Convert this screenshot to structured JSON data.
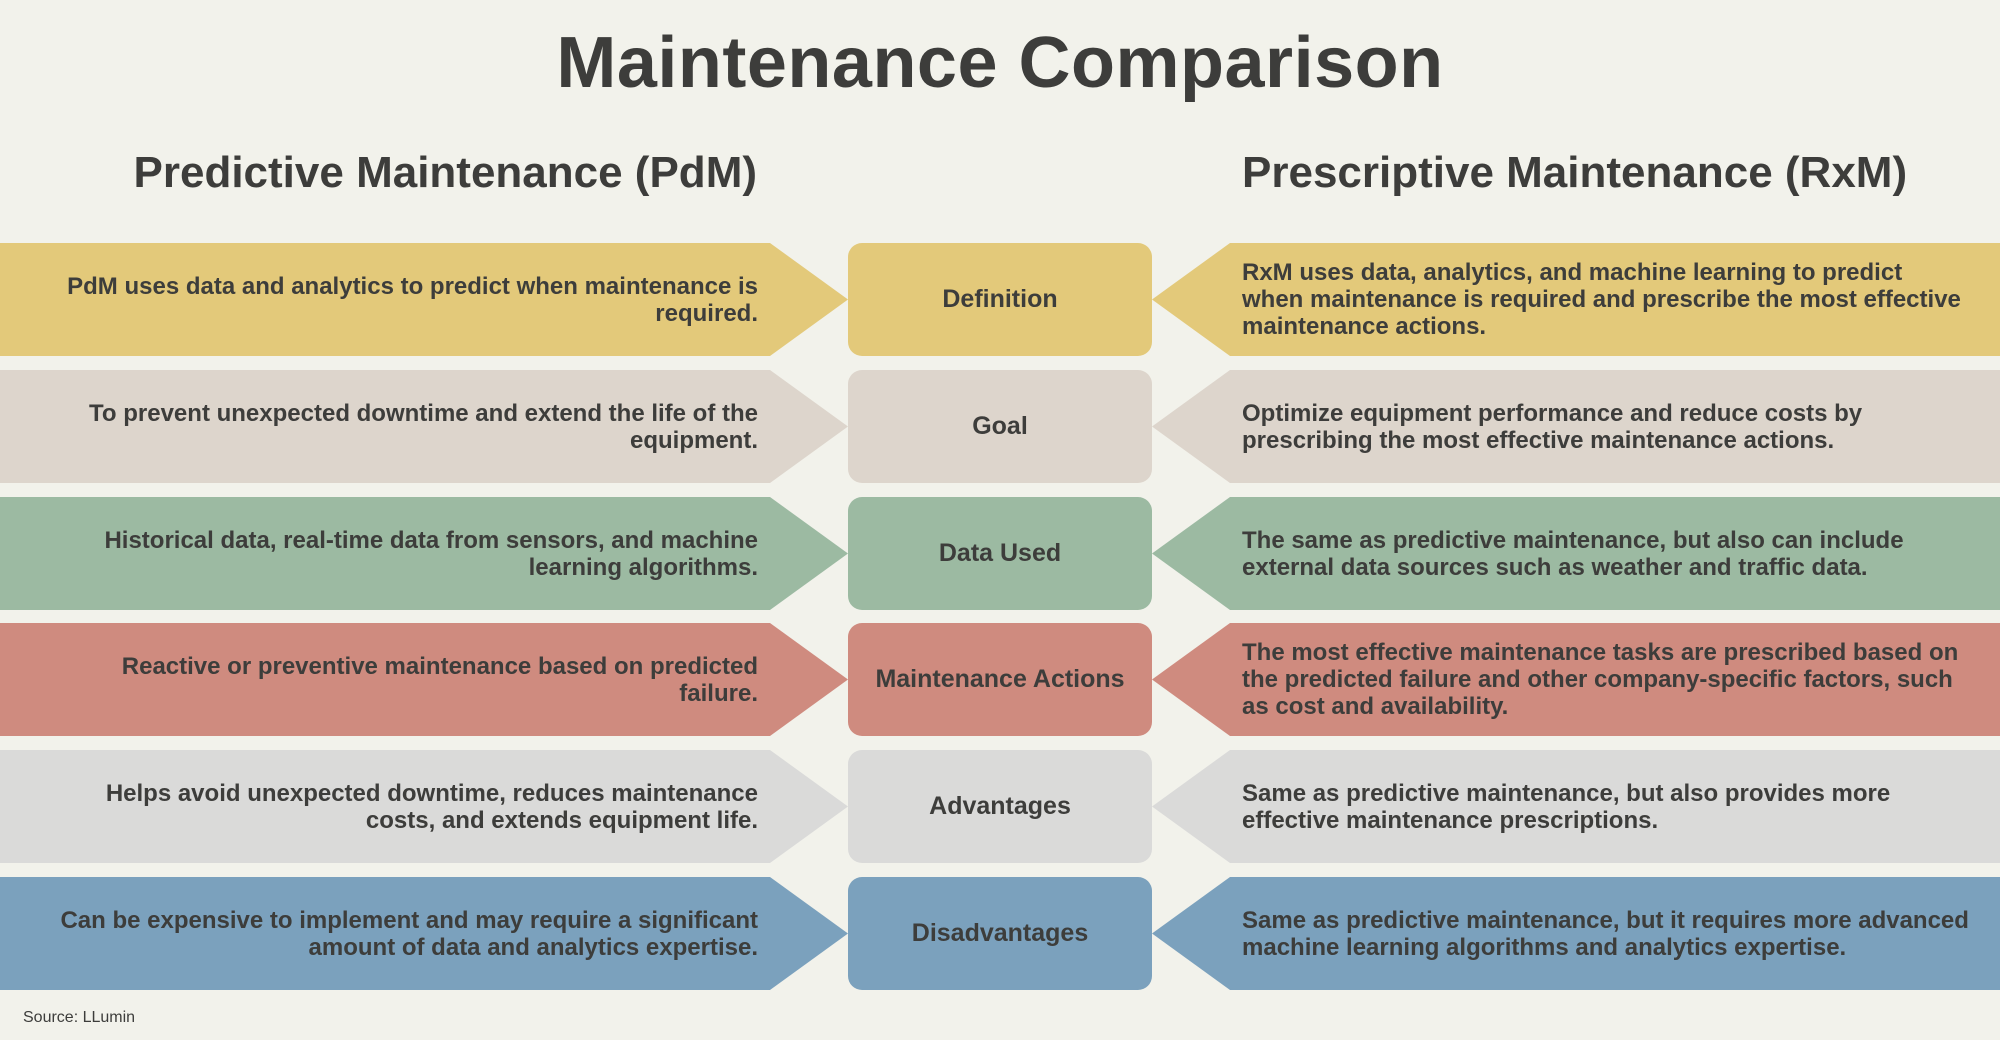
{
  "title": "Maintenance Comparison",
  "left_heading": "Predictive Maintenance (PdM)",
  "right_heading": "Prescriptive Maintenance (RxM)",
  "rows": [
    {
      "category": "Definition",
      "color": "#e3c97a",
      "pdm": "PdM uses data and analytics to predict when maintenance is required.",
      "rxm": "RxM uses data, analytics, and machine learning to predict when maintenance is required and prescribe the most effective maintenance actions."
    },
    {
      "category": "Goal",
      "color": "#ddd5cc",
      "pdm": "To prevent unexpected downtime and extend the life of the equipment.",
      "rxm": "Optimize equipment performance and reduce costs by prescribing the most effective maintenance actions."
    },
    {
      "category": "Data Used",
      "color": "#9cbaa2",
      "pdm": "Historical data, real-time data from sensors, and machine learning algorithms.",
      "rxm": "The same as predictive maintenance, but also can include external data sources such as weather and traffic data."
    },
    {
      "category": "Maintenance Actions",
      "color": "#cf8b7f",
      "pdm": "Reactive or preventive maintenance based on predicted failure.",
      "rxm": "The most effective maintenance tasks are prescribed based on the predicted failure and other company-specific factors, such as cost and availability."
    },
    {
      "category": "Advantages",
      "color": "#dadad9",
      "pdm": "Helps avoid unexpected downtime, reduces maintenance costs, and extends equipment life.",
      "rxm": "Same as predictive maintenance, but also provides more effective maintenance prescriptions."
    },
    {
      "category": "Disadvantages",
      "color": "#7ba1bd",
      "pdm": "Can be expensive to implement and may require a significant amount of data and analytics expertise.",
      "rxm": "Same as predictive maintenance, but it requires more advanced machine learning algorithms and analytics expertise."
    }
  ],
  "source": "Source: LLumin"
}
